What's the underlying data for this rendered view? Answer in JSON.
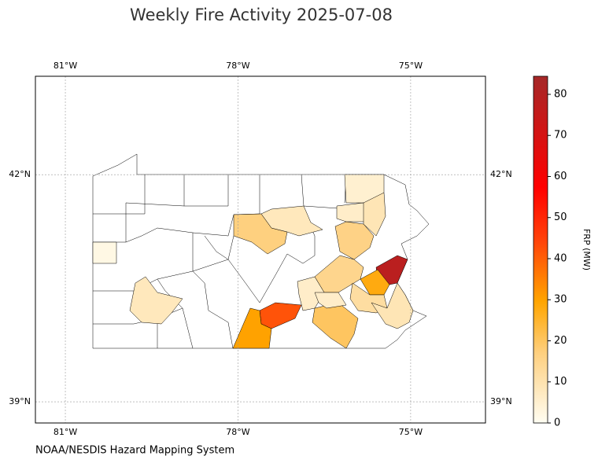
{
  "chart_data": {
    "type": "choropleth",
    "title": "Weekly Fire Activity 2025-07-08",
    "source": "NOAA/NESDIS Hazard Mapping System",
    "xlim": [
      -81.52,
      -73.7
    ],
    "ylim": [
      38.72,
      43.3
    ],
    "xticks": [
      {
        "value": -81,
        "label": "81°W"
      },
      {
        "value": -78,
        "label": "78°W"
      },
      {
        "value": -75,
        "label": "75°W"
      }
    ],
    "yticks": [
      {
        "value": 39,
        "label": "39°N"
      },
      {
        "value": 42,
        "label": "42°N"
      }
    ],
    "grid": true,
    "colorbar": {
      "label": "FRP (MW)",
      "lim": [
        0,
        84.4
      ],
      "ticks": [
        0,
        10,
        20,
        30,
        40,
        50,
        60,
        70,
        80
      ]
    },
    "values": [
      78,
      42,
      30,
      28,
      17,
      16,
      15,
      20,
      12,
      9,
      8,
      8,
      5,
      6,
      9,
      6,
      6,
      2
    ]
  }
}
